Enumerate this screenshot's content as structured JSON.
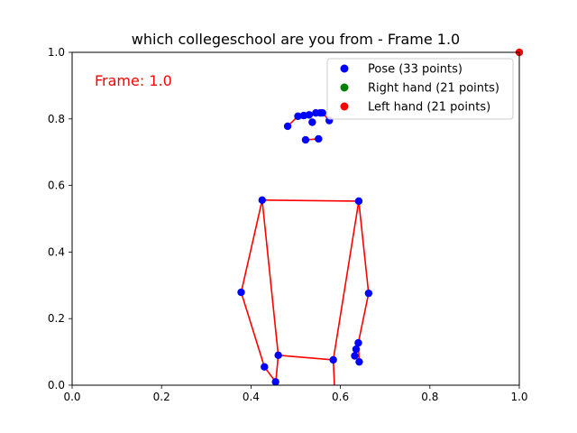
{
  "chart_data": {
    "type": "scatter",
    "title": "which collegeschool are you from - Frame 1.0",
    "annotation": "Frame: 1.0",
    "annotation_color": "#ff0000",
    "xlabel": "",
    "ylabel": "",
    "xlim": [
      0,
      1
    ],
    "ylim": [
      0,
      1
    ],
    "x_ticks": [
      "0.0",
      "0.2",
      "0.4",
      "0.6",
      "0.8",
      "1.0"
    ],
    "y_ticks": [
      "0.0",
      "0.2",
      "0.4",
      "0.6",
      "0.8",
      "1.0"
    ],
    "grid": false,
    "legend_position": "top-right",
    "connection_color": "#ff0000",
    "series": [
      {
        "name": "Pose (33 points)",
        "color": "#0000ff",
        "points": [
          [
            0.545,
            0.818
          ],
          [
            0.555,
            0.818
          ],
          [
            0.56,
            0.818
          ],
          [
            0.575,
            0.795
          ],
          [
            0.53,
            0.812
          ],
          [
            0.518,
            0.81
          ],
          [
            0.505,
            0.808
          ],
          [
            0.537,
            0.79
          ],
          [
            0.482,
            0.778
          ],
          [
            0.522,
            0.737
          ],
          [
            0.551,
            0.74
          ],
          [
            0.425,
            0.556
          ],
          [
            0.641,
            0.553
          ],
          [
            0.378,
            0.279
          ],
          [
            0.663,
            0.276
          ],
          [
            0.43,
            0.055
          ],
          [
            0.64,
            0.127
          ],
          [
            0.635,
            0.108
          ],
          [
            0.642,
            0.07
          ],
          [
            0.632,
            0.088
          ],
          [
            0.455,
            0.01
          ],
          [
            0.461,
            0.09
          ],
          [
            0.584,
            0.076
          ],
          [
            0.59,
            -0.1
          ]
        ]
      },
      {
        "name": "Right hand (21 points)",
        "color": "#008000",
        "points": []
      },
      {
        "name": "Left hand (21 points)",
        "color": "#ff0000",
        "points": [
          [
            1.0,
            1.0
          ]
        ]
      }
    ],
    "connections": [
      [
        [
          0.545,
          0.818
        ],
        [
          0.555,
          0.818
        ]
      ],
      [
        [
          0.555,
          0.818
        ],
        [
          0.56,
          0.818
        ]
      ],
      [
        [
          0.56,
          0.818
        ],
        [
          0.575,
          0.795
        ]
      ],
      [
        [
          0.545,
          0.818
        ],
        [
          0.53,
          0.812
        ]
      ],
      [
        [
          0.53,
          0.812
        ],
        [
          0.518,
          0.81
        ]
      ],
      [
        [
          0.518,
          0.81
        ],
        [
          0.505,
          0.808
        ]
      ],
      [
        [
          0.505,
          0.808
        ],
        [
          0.482,
          0.778
        ]
      ],
      [
        [
          0.522,
          0.737
        ],
        [
          0.551,
          0.74
        ]
      ],
      [
        [
          0.425,
          0.556
        ],
        [
          0.641,
          0.553
        ]
      ],
      [
        [
          0.425,
          0.556
        ],
        [
          0.378,
          0.279
        ]
      ],
      [
        [
          0.378,
          0.279
        ],
        [
          0.43,
          0.055
        ]
      ],
      [
        [
          0.641,
          0.553
        ],
        [
          0.663,
          0.276
        ]
      ],
      [
        [
          0.663,
          0.276
        ],
        [
          0.64,
          0.127
        ]
      ],
      [
        [
          0.64,
          0.127
        ],
        [
          0.635,
          0.108
        ]
      ],
      [
        [
          0.64,
          0.127
        ],
        [
          0.642,
          0.07
        ]
      ],
      [
        [
          0.64,
          0.127
        ],
        [
          0.632,
          0.088
        ]
      ],
      [
        [
          0.425,
          0.556
        ],
        [
          0.461,
          0.09
        ]
      ],
      [
        [
          0.641,
          0.553
        ],
        [
          0.584,
          0.076
        ]
      ],
      [
        [
          0.461,
          0.09
        ],
        [
          0.584,
          0.076
        ]
      ],
      [
        [
          0.461,
          0.09
        ],
        [
          0.448,
          -0.1
        ]
      ],
      [
        [
          0.584,
          0.076
        ],
        [
          0.59,
          -0.1
        ]
      ],
      [
        [
          0.43,
          0.055
        ],
        [
          0.455,
          0.01
        ]
      ]
    ]
  }
}
